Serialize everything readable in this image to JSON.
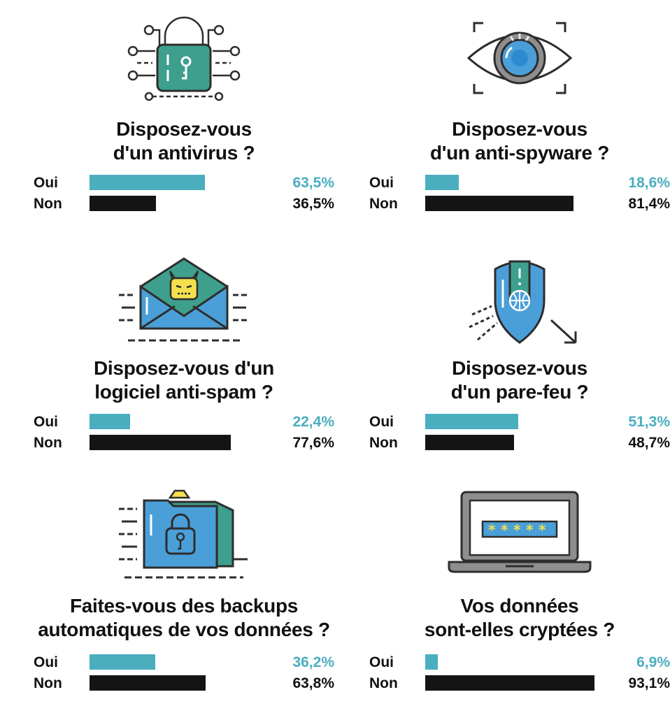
{
  "colors": {
    "oui": "#4aaebf",
    "non": "#141414",
    "teal_icon": "#3e9f8c",
    "blue_icon": "#4a9fd8",
    "yellow_icon": "#f4e04d"
  },
  "chart_data": [
    {
      "type": "bar",
      "icon": "padlock-circuit-icon",
      "title_lines": [
        "Disposez-vous",
        "d'un antivirus ?"
      ],
      "categories": [
        "Oui",
        "Non"
      ],
      "values": [
        63.5,
        36.5
      ],
      "value_labels": [
        "63,5%",
        "36,5%"
      ],
      "xlim": [
        0,
        100
      ]
    },
    {
      "type": "bar",
      "icon": "eye-scan-icon",
      "title_lines": [
        "Disposez-vous",
        "d'un anti-spyware ?"
      ],
      "categories": [
        "Oui",
        "Non"
      ],
      "values": [
        18.6,
        81.4
      ],
      "value_labels": [
        "18,6%",
        "81,4%"
      ],
      "xlim": [
        0,
        100
      ]
    },
    {
      "type": "bar",
      "icon": "spam-envelope-icon",
      "title_lines": [
        "Disposez-vous d'un",
        "logiciel anti-spam ?"
      ],
      "categories": [
        "Oui",
        "Non"
      ],
      "values": [
        22.4,
        77.6
      ],
      "value_labels": [
        "22,4%",
        "77,6%"
      ],
      "xlim": [
        0,
        100
      ]
    },
    {
      "type": "bar",
      "icon": "firewall-shield-icon",
      "title_lines": [
        "Disposez-vous",
        "d'un pare-feu ?"
      ],
      "categories": [
        "Oui",
        "Non"
      ],
      "values": [
        51.3,
        48.7
      ],
      "value_labels": [
        "51,3%",
        "48,7%"
      ],
      "xlim": [
        0,
        100
      ]
    },
    {
      "type": "bar",
      "icon": "locked-folder-icon",
      "title_lines": [
        "Faites-vous des backups",
        "automatiques de vos données ?"
      ],
      "categories": [
        "Oui",
        "Non"
      ],
      "values": [
        36.2,
        63.8
      ],
      "value_labels": [
        "36,2%",
        "63,8%"
      ],
      "xlim": [
        0,
        100
      ]
    },
    {
      "type": "bar",
      "icon": "laptop-password-icon",
      "title_lines": [
        "Vos données",
        "sont-elles cryptées ?"
      ],
      "categories": [
        "Oui",
        "Non"
      ],
      "values": [
        6.9,
        93.1
      ],
      "value_labels": [
        "6,9%",
        "93,1%"
      ],
      "xlim": [
        0,
        100
      ]
    }
  ]
}
